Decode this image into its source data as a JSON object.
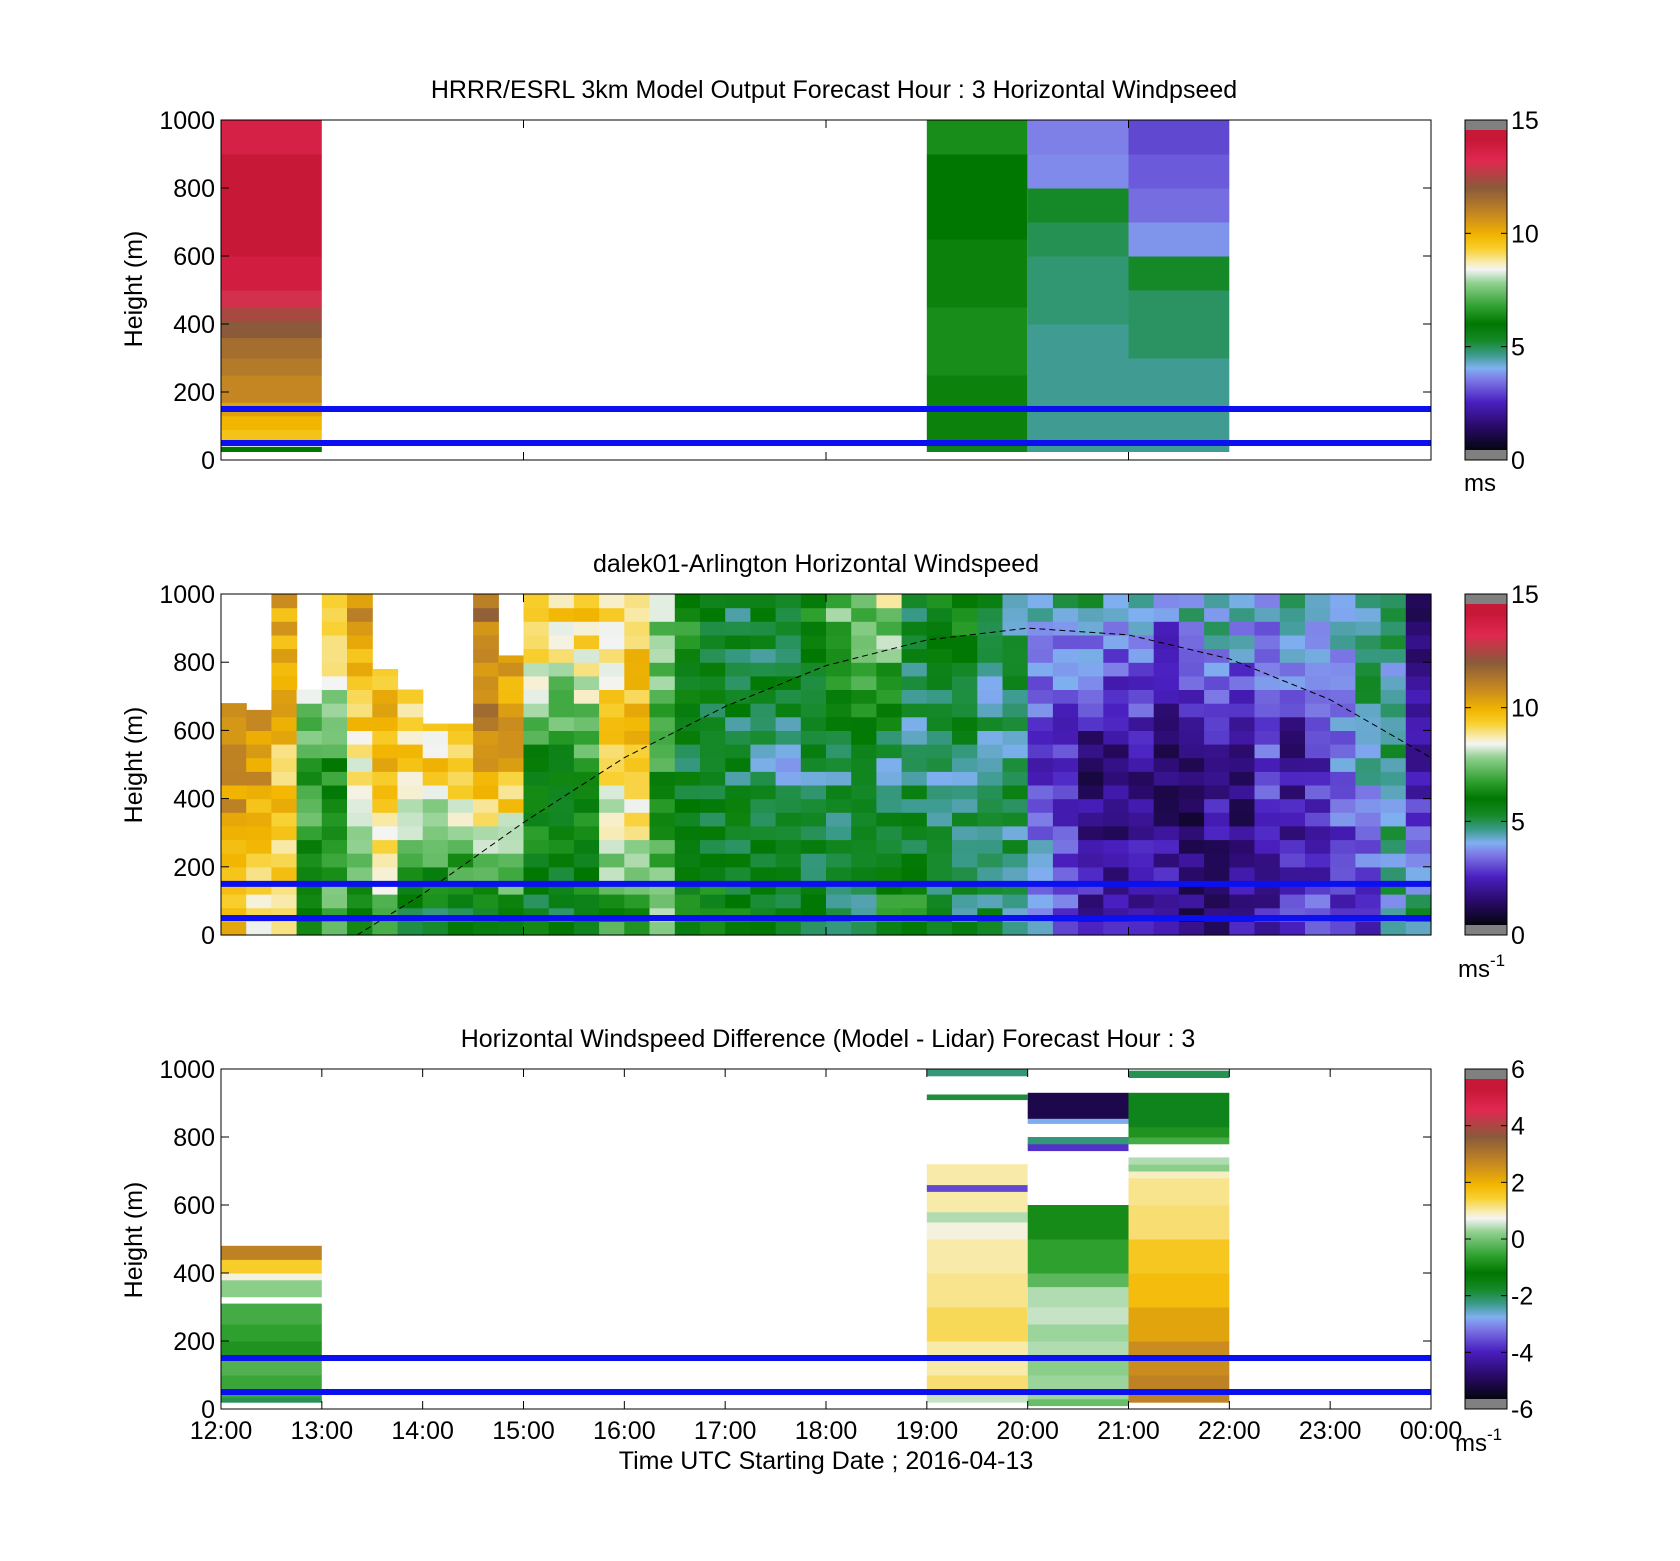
{
  "chart_data": [
    {
      "type": "heatmap",
      "title": "HRRR/ESRL 3km Model Output   Forecast Hour : 3 Horizontal Windpseed",
      "ylabel": "Height (m)",
      "xlim": [
        12,
        24
      ],
      "ylim": [
        0,
        1000
      ],
      "yticks": [
        0,
        200,
        400,
        600,
        800,
        1000
      ],
      "xticks": [
        12,
        15,
        18,
        21
      ],
      "show_xtick_labels": false,
      "grid": false,
      "colorbar": {
        "min": 0,
        "max": 15,
        "ticks": [
          "0",
          "5",
          "10",
          "15"
        ],
        "unit": "ms",
        "unit_sup": ""
      },
      "hlines": [
        50,
        150
      ],
      "columns": [
        {
          "t0": 12,
          "t1": 13,
          "cells": [
            {
              "y0": 25,
              "y1": 40,
              "v": 6.0
            },
            {
              "y0": 40,
              "y1": 60,
              "v": 8.3
            },
            {
              "y0": 60,
              "y1": 90,
              "v": 9.6
            },
            {
              "y0": 90,
              "y1": 130,
              "v": 9.9
            },
            {
              "y0": 130,
              "y1": 170,
              "v": 10.3
            },
            {
              "y0": 170,
              "y1": 250,
              "v": 10.9
            },
            {
              "y0": 250,
              "y1": 300,
              "v": 11.2
            },
            {
              "y0": 300,
              "y1": 360,
              "v": 11.5
            },
            {
              "y0": 360,
              "y1": 410,
              "v": 12.0
            },
            {
              "y0": 410,
              "y1": 450,
              "v": 12.4
            },
            {
              "y0": 450,
              "y1": 500,
              "v": 13.0
            },
            {
              "y0": 500,
              "y1": 600,
              "v": 13.8
            },
            {
              "y0": 600,
              "y1": 700,
              "v": 14.2
            },
            {
              "y0": 700,
              "y1": 900,
              "v": 14.5
            },
            {
              "y0": 900,
              "y1": 1000,
              "v": 13.6
            }
          ]
        },
        {
          "t0": 19,
          "t1": 20,
          "cells": [
            {
              "y0": 25,
              "y1": 40,
              "v": 5.5
            },
            {
              "y0": 40,
              "y1": 250,
              "v": 6.2
            },
            {
              "y0": 250,
              "y1": 450,
              "v": 6.4
            },
            {
              "y0": 450,
              "y1": 650,
              "v": 6.2
            },
            {
              "y0": 650,
              "y1": 900,
              "v": 6.0
            },
            {
              "y0": 900,
              "y1": 1000,
              "v": 6.4
            }
          ]
        },
        {
          "t0": 20,
          "t1": 21,
          "cells": [
            {
              "y0": 25,
              "y1": 400,
              "v": 4.6
            },
            {
              "y0": 400,
              "y1": 600,
              "v": 4.8
            },
            {
              "y0": 600,
              "y1": 700,
              "v": 5.0
            },
            {
              "y0": 700,
              "y1": 800,
              "v": 5.3
            },
            {
              "y0": 800,
              "y1": 900,
              "v": 3.7
            },
            {
              "y0": 900,
              "y1": 1000,
              "v": 3.6
            }
          ]
        },
        {
          "t0": 21,
          "t1": 22,
          "cells": [
            {
              "y0": 25,
              "y1": 300,
              "v": 4.6
            },
            {
              "y0": 300,
              "y1": 500,
              "v": 4.9
            },
            {
              "y0": 500,
              "y1": 600,
              "v": 5.3
            },
            {
              "y0": 600,
              "y1": 700,
              "v": 3.8
            },
            {
              "y0": 700,
              "y1": 800,
              "v": 3.4
            },
            {
              "y0": 800,
              "y1": 900,
              "v": 3.2
            },
            {
              "y0": 900,
              "y1": 1000,
              "v": 3.0
            }
          ]
        }
      ]
    },
    {
      "type": "heatmap",
      "title": "dalek01-Arlington  Horizontal Windspeed",
      "ylabel": "Height (m)",
      "xlim": [
        12,
        24
      ],
      "ylim": [
        0,
        1000
      ],
      "yticks": [
        0,
        200,
        400,
        600,
        800,
        1000
      ],
      "xticks": [
        12,
        15,
        18,
        21
      ],
      "show_xtick_labels": false,
      "grid": false,
      "colorbar": {
        "min": 0,
        "max": 15,
        "ticks": [
          "0",
          "5",
          "10",
          "15"
        ],
        "unit": "ms",
        "unit_sup": "-1"
      },
      "hlines": [
        50,
        150
      ],
      "lidar_profile": {
        "bin_width_hours": 0.25,
        "bin_starts": [
          12.0,
          12.25,
          12.5,
          12.75,
          13.0,
          13.25,
          13.5,
          13.75,
          14.0,
          14.25,
          14.5,
          14.75,
          15.0,
          15.25,
          15.5,
          15.75,
          16.0,
          16.25,
          16.5,
          16.75,
          17.0,
          17.25,
          17.5,
          17.75,
          18.0,
          18.25,
          18.5,
          18.75,
          19.0,
          19.25,
          19.5,
          19.75,
          20.0,
          20.25,
          20.5,
          20.75,
          21.0,
          21.25,
          21.5,
          21.75,
          22.0,
          22.25,
          22.5,
          22.75,
          23.0,
          23.25,
          23.5,
          23.75
        ],
        "top_m": [
          680,
          660,
          1000,
          720,
          1000,
          1000,
          780,
          720,
          620,
          620,
          1000,
          820,
          1000,
          1000,
          1000,
          1000,
          1000,
          1000,
          1000,
          1000,
          1000,
          1000,
          1000,
          1000,
          1000,
          1000,
          1000,
          1000,
          1000,
          1000,
          1000,
          1000,
          1000,
          1000,
          1000,
          1000,
          1000,
          1000,
          1000,
          1000,
          1000,
          1000,
          1000,
          1000,
          1000,
          1000,
          1000,
          1000
        ],
        "speed_low_ms": [
          9.5,
          9.0,
          8.8,
          6.5,
          7.5,
          6.0,
          7.5,
          5.2,
          5.0,
          5.0,
          5.0,
          6.0,
          5.5,
          5.5,
          5.5,
          6.5,
          6.5,
          7.5,
          6.0,
          6.0,
          6.0,
          5.8,
          5.5,
          5.5,
          5.0,
          5.0,
          6.5,
          6.5,
          5.5,
          5.0,
          5.0,
          5.0,
          4.5,
          3.5,
          2.5,
          2.0,
          2.0,
          2.5,
          1.5,
          1.0,
          2.0,
          2.0,
          3.0,
          3.0,
          2.5,
          2.5,
          4.5,
          5.0
        ],
        "speed_mid_ms": [
          10.5,
          10.5,
          9.5,
          7.0,
          6.2,
          8.8,
          9.5,
          9.3,
          9.2,
          9.5,
          10.5,
          10.2,
          6.3,
          6.0,
          6.8,
          9.0,
          9.5,
          6.5,
          5.5,
          5.5,
          5.2,
          4.8,
          4.6,
          4.8,
          5.0,
          5.0,
          4.6,
          4.8,
          4.6,
          4.8,
          4.5,
          4.8,
          2.8,
          2.2,
          1.5,
          1.5,
          1.8,
          1.5,
          1.2,
          2.5,
          1.5,
          3.2,
          1.8,
          2.5,
          3.5,
          4.6,
          4.6,
          2.0
        ],
        "speed_top_ms": [
          11.0,
          10.5,
          10.0,
          9.5,
          10.0,
          10.5,
          10.0,
          9.0,
          8.5,
          9.5,
          11.5,
          10.5,
          10.0,
          9.5,
          9.5,
          9.0,
          9.5,
          8.0,
          6.5,
          5.5,
          5.2,
          5.5,
          6.0,
          6.5,
          7.5,
          8.0,
          8.5,
          5.0,
          6.0,
          6.5,
          5.0,
          5.0,
          4.8,
          4.6,
          4.8,
          4.6,
          4.6,
          3.5,
          4.6,
          4.8,
          4.6,
          4.0,
          4.6,
          4.5,
          4.6,
          4.6,
          4.6,
          1.5
        ]
      },
      "reference_curve": [
        {
          "t": 13.35,
          "h": 0
        },
        {
          "t": 14.0,
          "h": 120
        },
        {
          "t": 15.0,
          "h": 330
        },
        {
          "t": 16.0,
          "h": 520
        },
        {
          "t": 17.0,
          "h": 670
        },
        {
          "t": 18.0,
          "h": 790
        },
        {
          "t": 19.0,
          "h": 865
        },
        {
          "t": 20.0,
          "h": 900
        },
        {
          "t": 21.0,
          "h": 880
        },
        {
          "t": 22.0,
          "h": 810
        },
        {
          "t": 23.0,
          "h": 690
        },
        {
          "t": 24.0,
          "h": 520
        }
      ]
    },
    {
      "type": "heatmap",
      "title": "Horizontal Windspeed Difference (Model - Lidar) Forecast Hour : 3",
      "ylabel": "Height (m)",
      "xlabel": "Time UTC  Starting Date ; 2016-04-13",
      "xlim": [
        12,
        24
      ],
      "ylim": [
        0,
        1000
      ],
      "yticks": [
        0,
        200,
        400,
        600,
        800,
        1000
      ],
      "xticks": [
        12,
        13,
        14,
        15,
        16,
        17,
        18,
        19,
        20,
        21,
        22,
        23,
        24
      ],
      "xtick_labels": [
        "12:00",
        "13:00",
        "14:00",
        "15:00",
        "16:00",
        "17:00",
        "18:00",
        "19:00",
        "20:00",
        "21:00",
        "22:00",
        "23:00",
        "00:00"
      ],
      "show_xtick_labels": true,
      "grid": false,
      "colorbar": {
        "min": -6,
        "max": 6,
        "ticks": [
          "-6",
          "-4",
          "-2",
          "0",
          "2",
          "4",
          "6"
        ],
        "unit": "ms",
        "unit_sup": "-1"
      },
      "hlines": [
        50,
        150
      ],
      "columns": [
        {
          "t0": 12,
          "t1": 13,
          "cells": [
            {
              "y0": 20,
              "y1": 35,
              "v": -2.0
            },
            {
              "y0": 35,
              "y1": 100,
              "v": -0.5
            },
            {
              "y0": 100,
              "y1": 150,
              "v": -0.3
            },
            {
              "y0": 150,
              "y1": 200,
              "v": -0.8
            },
            {
              "y0": 200,
              "y1": 250,
              "v": -0.6
            },
            {
              "y0": 250,
              "y1": 310,
              "v": -0.4
            },
            {
              "y0": 330,
              "y1": 380,
              "v": 0.2
            },
            {
              "y0": 380,
              "y1": 400,
              "v": 0.8
            },
            {
              "y0": 400,
              "y1": 440,
              "v": 1.5
            },
            {
              "y0": 440,
              "y1": 480,
              "v": 2.8
            }
          ]
        },
        {
          "t0": 19,
          "t1": 20,
          "cells": [
            {
              "y0": 20,
              "y1": 50,
              "v": 0.5
            },
            {
              "y0": 50,
              "y1": 100,
              "v": 1.2
            },
            {
              "y0": 100,
              "y1": 200,
              "v": 1.0
            },
            {
              "y0": 200,
              "y1": 300,
              "v": 1.3
            },
            {
              "y0": 300,
              "y1": 400,
              "v": 1.1
            },
            {
              "y0": 400,
              "y1": 500,
              "v": 1.0
            },
            {
              "y0": 500,
              "y1": 550,
              "v": 0.8
            },
            {
              "y0": 550,
              "y1": 580,
              "v": 0.4
            },
            {
              "y0": 580,
              "y1": 640,
              "v": 1.0
            },
            {
              "y0": 640,
              "y1": 660,
              "v": -3.6
            },
            {
              "y0": 660,
              "y1": 720,
              "v": 1.0
            },
            {
              "y0": 910,
              "y1": 925,
              "v": -1.9
            },
            {
              "y0": 980,
              "y1": 1000,
              "v": -2.2
            }
          ]
        },
        {
          "t0": 20,
          "t1": 21,
          "cells": [
            {
              "y0": 10,
              "y1": 30,
              "v": -0.1
            },
            {
              "y0": 30,
              "y1": 100,
              "v": 0.3
            },
            {
              "y0": 100,
              "y1": 150,
              "v": 0.2
            },
            {
              "y0": 150,
              "y1": 200,
              "v": 0.4
            },
            {
              "y0": 200,
              "y1": 250,
              "v": 0.3
            },
            {
              "y0": 250,
              "y1": 300,
              "v": 0.5
            },
            {
              "y0": 300,
              "y1": 360,
              "v": 0.4
            },
            {
              "y0": 360,
              "y1": 400,
              "v": -0.2
            },
            {
              "y0": 400,
              "y1": 500,
              "v": -0.6
            },
            {
              "y0": 500,
              "y1": 600,
              "v": -0.9
            },
            {
              "y0": 760,
              "y1": 780,
              "v": -3.8
            },
            {
              "y0": 780,
              "y1": 800,
              "v": -2.2
            },
            {
              "y0": 840,
              "y1": 855,
              "v": -2.8
            },
            {
              "y0": 855,
              "y1": 930,
              "v": -5.2
            }
          ]
        },
        {
          "t0": 21,
          "t1": 22,
          "cells": [
            {
              "y0": 20,
              "y1": 100,
              "v": 2.8
            },
            {
              "y0": 100,
              "y1": 200,
              "v": 2.6
            },
            {
              "y0": 200,
              "y1": 300,
              "v": 2.2
            },
            {
              "y0": 300,
              "y1": 400,
              "v": 1.8
            },
            {
              "y0": 400,
              "y1": 500,
              "v": 1.6
            },
            {
              "y0": 500,
              "y1": 600,
              "v": 1.2
            },
            {
              "y0": 600,
              "y1": 680,
              "v": 1.1
            },
            {
              "y0": 680,
              "y1": 700,
              "v": 0.9
            },
            {
              "y0": 700,
              "y1": 720,
              "v": 0.2
            },
            {
              "y0": 720,
              "y1": 740,
              "v": 0.4
            },
            {
              "y0": 780,
              "y1": 800,
              "v": -0.4
            },
            {
              "y0": 800,
              "y1": 830,
              "v": -0.8
            },
            {
              "y0": 830,
              "y1": 930,
              "v": -1.6
            },
            {
              "y0": 975,
              "y1": 995,
              "v": -2.0
            }
          ]
        }
      ]
    }
  ]
}
